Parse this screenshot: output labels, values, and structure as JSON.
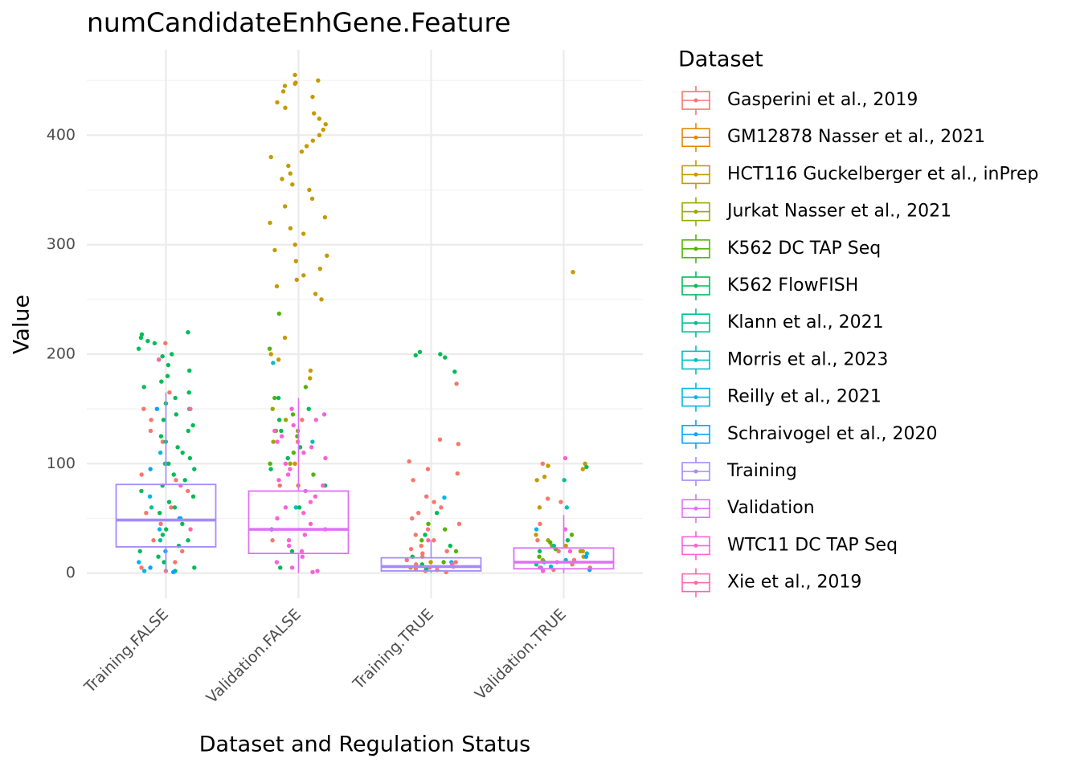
{
  "chart_data": {
    "type": "box_jitter",
    "title": "numCandidateEnhGene.Feature",
    "x_label": "Dataset and Regulation Status",
    "y_label": "Value",
    "legend_title": "Dataset",
    "categories": [
      "Training.FALSE",
      "Validation.FALSE",
      "Training.TRUE",
      "Validation.TRUE"
    ],
    "ylim": [
      -23,
      478
    ],
    "yticks": [
      0,
      100,
      200,
      300,
      400
    ],
    "yminor": [
      50,
      150,
      250,
      350,
      450
    ],
    "grid": true,
    "series": [
      {
        "name": "Gasperini et al., 2019",
        "color": "#F8766D",
        "x": [
          "Training.FALSE",
          "Training.FALSE",
          "Training.FALSE",
          "Training.FALSE",
          "Training.FALSE",
          "Training.FALSE",
          "Training.FALSE",
          "Training.FALSE",
          "Training.FALSE",
          "Training.FALSE",
          "Training.FALSE",
          "Training.FALSE",
          "Training.FALSE",
          "Training.FALSE",
          "Training.FALSE",
          "Training.FALSE",
          "Training.FALSE",
          "Training.FALSE",
          "Validation.FALSE",
          "Validation.FALSE",
          "Validation.FALSE",
          "Validation.FALSE",
          "Training.TRUE",
          "Training.TRUE",
          "Training.TRUE",
          "Training.TRUE",
          "Training.TRUE",
          "Training.TRUE",
          "Training.TRUE",
          "Training.TRUE",
          "Training.TRUE",
          "Training.TRUE",
          "Training.TRUE",
          "Training.TRUE",
          "Training.TRUE",
          "Training.TRUE",
          "Training.TRUE",
          "Training.TRUE",
          "Training.TRUE",
          "Training.TRUE",
          "Training.TRUE",
          "Training.TRUE",
          "Training.TRUE",
          "Training.TRUE",
          "Training.TRUE",
          "Training.TRUE",
          "Training.TRUE",
          "Training.TRUE",
          "Training.TRUE",
          "Training.TRUE",
          "Training.TRUE",
          "Training.TRUE",
          "Validation.TRUE",
          "Validation.TRUE",
          "Validation.TRUE",
          "Validation.TRUE",
          "Validation.TRUE",
          "Validation.TRUE",
          "Validation.TRUE",
          "Validation.TRUE",
          "Validation.TRUE",
          "Validation.TRUE"
        ],
        "values": [
          210,
          165,
          150,
          140,
          120,
          100,
          90,
          75,
          60,
          45,
          30,
          20,
          10,
          5,
          2,
          130,
          85,
          55,
          140,
          120,
          80,
          30,
          173,
          118,
          102,
          95,
          91,
          85,
          70,
          65,
          60,
          55,
          50,
          45,
          40,
          35,
          30,
          25,
          22,
          20,
          18,
          15,
          12,
          10,
          8,
          6,
          5,
          4,
          3,
          2,
          1,
          122,
          100,
          68,
          65,
          45,
          30,
          20,
          12,
          8,
          5,
          3
        ]
      },
      {
        "name": "GM12878 Nasser et al., 2021",
        "color": "#E38900",
        "x": [
          "Validation.FALSE",
          "Validation.FALSE"
        ],
        "values": [
          100,
          80
        ]
      },
      {
        "name": "HCT116 Guckelberger et al., inPrep",
        "color": "#C49A00",
        "x": [
          "Validation.FALSE",
          "Validation.FALSE",
          "Validation.FALSE",
          "Validation.FALSE",
          "Validation.FALSE",
          "Validation.FALSE",
          "Validation.FALSE",
          "Validation.FALSE",
          "Validation.FALSE",
          "Validation.FALSE",
          "Validation.FALSE",
          "Validation.FALSE",
          "Validation.FALSE",
          "Validation.FALSE",
          "Validation.FALSE",
          "Validation.FALSE",
          "Validation.FALSE",
          "Validation.FALSE",
          "Validation.FALSE",
          "Validation.FALSE",
          "Validation.FALSE",
          "Validation.FALSE",
          "Validation.FALSE",
          "Validation.FALSE",
          "Validation.FALSE",
          "Validation.FALSE",
          "Validation.FALSE",
          "Validation.FALSE",
          "Validation.FALSE",
          "Validation.FALSE",
          "Validation.FALSE",
          "Validation.FALSE",
          "Validation.FALSE",
          "Validation.FALSE",
          "Validation.FALSE",
          "Validation.FALSE",
          "Validation.FALSE",
          "Validation.FALSE",
          "Validation.FALSE",
          "Validation.FALSE",
          "Validation.FALSE",
          "Validation.FALSE",
          "Validation.FALSE",
          "Validation.FALSE",
          "Validation.TRUE",
          "Validation.TRUE",
          "Validation.TRUE",
          "Validation.TRUE",
          "Validation.TRUE",
          "Validation.TRUE",
          "Validation.TRUE",
          "Validation.TRUE",
          "Validation.TRUE",
          "Validation.TRUE",
          "Validation.TRUE",
          "Training.TRUE",
          "Training.TRUE"
        ],
        "values": [
          455,
          450,
          448,
          447,
          445,
          440,
          435,
          430,
          425,
          420,
          415,
          410,
          405,
          400,
          395,
          390,
          385,
          380,
          372,
          365,
          360,
          355,
          350,
          342,
          335,
          325,
          320,
          315,
          310,
          300,
          295,
          290,
          285,
          278,
          272,
          268,
          262,
          255,
          250,
          215,
          200,
          195,
          185,
          178,
          275,
          100,
          98,
          95,
          88,
          85,
          60,
          35,
          25,
          20,
          15,
          5,
          10
        ]
      },
      {
        "name": "Jurkat Nasser et al., 2021",
        "color": "#99A800",
        "x": [
          "Validation.FALSE",
          "Validation.FALSE",
          "Validation.FALSE",
          "Validation.FALSE",
          "Validation.FALSE",
          "Validation.TRUE",
          "Validation.TRUE",
          "Validation.TRUE",
          "Validation.TRUE"
        ],
        "values": [
          150,
          140,
          130,
          120,
          100,
          30,
          25,
          20,
          12
        ]
      },
      {
        "name": "K562 DC TAP Seq",
        "color": "#53B400",
        "x": [
          "Validation.FALSE",
          "Validation.FALSE",
          "Validation.FALSE",
          "Validation.FALSE",
          "Validation.FALSE",
          "Validation.FALSE",
          "Validation.FALSE",
          "Validation.FALSE",
          "Validation.FALSE",
          "Validation.FALSE",
          "Training.TRUE",
          "Training.TRUE",
          "Training.TRUE",
          "Training.TRUE",
          "Training.TRUE",
          "Validation.TRUE",
          "Validation.TRUE",
          "Validation.TRUE",
          "Validation.TRUE"
        ],
        "values": [
          237,
          205,
          170,
          160,
          145,
          130,
          125,
          110,
          100,
          90,
          45,
          40,
          30,
          20,
          10,
          35,
          28,
          22,
          15
        ]
      },
      {
        "name": "K562 FlowFISH",
        "color": "#00BC56",
        "x": [
          "Training.FALSE",
          "Training.FALSE",
          "Training.FALSE",
          "Training.FALSE",
          "Training.FALSE",
          "Training.FALSE",
          "Training.FALSE",
          "Training.FALSE",
          "Training.FALSE",
          "Training.FALSE",
          "Training.FALSE",
          "Training.FALSE",
          "Training.FALSE",
          "Training.FALSE",
          "Training.FALSE",
          "Training.FALSE",
          "Training.FALSE",
          "Training.FALSE",
          "Training.FALSE",
          "Training.FALSE",
          "Training.FALSE",
          "Training.FALSE",
          "Training.FALSE",
          "Training.FALSE",
          "Training.FALSE",
          "Training.FALSE",
          "Training.FALSE",
          "Training.FALSE",
          "Training.FALSE",
          "Training.FALSE",
          "Training.FALSE",
          "Training.FALSE",
          "Training.FALSE",
          "Training.FALSE",
          "Training.FALSE",
          "Training.FALSE",
          "Training.FALSE",
          "Training.FALSE",
          "Training.FALSE",
          "Training.FALSE",
          "Training.FALSE",
          "Training.FALSE",
          "Training.FALSE",
          "Training.FALSE",
          "Training.FALSE",
          "Training.FALSE",
          "Training.FALSE",
          "Training.FALSE",
          "Validation.FALSE",
          "Validation.FALSE",
          "Validation.FALSE",
          "Validation.FALSE",
          "Validation.FALSE",
          "Validation.FALSE",
          "Validation.FALSE",
          "Validation.FALSE",
          "Validation.FALSE",
          "Validation.FALSE",
          "Validation.FALSE",
          "Validation.FALSE",
          "Training.TRUE",
          "Training.TRUE",
          "Training.TRUE",
          "Training.TRUE",
          "Training.TRUE",
          "Training.TRUE",
          "Training.TRUE",
          "Training.TRUE",
          "Training.TRUE",
          "Training.TRUE",
          "Training.TRUE",
          "Validation.TRUE",
          "Validation.TRUE",
          "Validation.TRUE",
          "Validation.TRUE"
        ],
        "values": [
          220,
          218,
          215,
          212,
          210,
          205,
          200,
          198,
          195,
          190,
          185,
          180,
          175,
          170,
          165,
          160,
          155,
          150,
          145,
          140,
          135,
          130,
          125,
          120,
          115,
          110,
          105,
          100,
          95,
          90,
          85,
          80,
          75,
          70,
          65,
          60,
          55,
          50,
          45,
          40,
          35,
          30,
          25,
          20,
          15,
          10,
          5,
          2,
          160,
          150,
          140,
          130,
          115,
          105,
          95,
          80,
          60,
          40,
          20,
          5,
          200,
          199,
          197,
          202,
          184,
          55,
          35,
          25,
          15,
          8,
          4,
          97,
          30,
          20,
          10
        ]
      },
      {
        "name": "Klann et al., 2021",
        "color": "#00C094",
        "x": [
          "Training.FALSE",
          "Training.FALSE",
          "Training.FALSE",
          "Validation.TRUE",
          "Validation.TRUE",
          "Validation.TRUE"
        ],
        "values": [
          100,
          60,
          30,
          85,
          25,
          8
        ]
      },
      {
        "name": "Morris et al., 2023",
        "color": "#00BFC4",
        "x": [
          "Validation.FALSE",
          "Validation.FALSE",
          "Validation.FALSE",
          "Validation.TRUE",
          "Validation.TRUE",
          "Validation.TRUE"
        ],
        "values": [
          192,
          120,
          60,
          60,
          18,
          5
        ]
      },
      {
        "name": "Reilly et al., 2021",
        "color": "#00B6EB",
        "x": [
          "Training.FALSE",
          "Training.FALSE",
          "Training.FALSE",
          "Training.FALSE",
          "Training.FALSE",
          "Training.TRUE",
          "Training.TRUE",
          "Validation.TRUE",
          "Validation.TRUE",
          "Validation.TRUE"
        ],
        "values": [
          110,
          70,
          40,
          10,
          2,
          69,
          10,
          40,
          12,
          6
        ]
      },
      {
        "name": "Schraivogel et al., 2020",
        "color": "#06A4FF",
        "x": [
          "Training.FALSE",
          "Training.FALSE",
          "Training.FALSE",
          "Training.FALSE",
          "Training.FALSE",
          "Training.FALSE",
          "Validation.TRUE",
          "Validation.TRUE"
        ],
        "values": [
          150,
          95,
          50,
          20,
          5,
          1,
          15,
          3
        ]
      },
      {
        "name": "Training",
        "color": "#A58AFF",
        "x": [
          "Training.FALSE",
          "Training.TRUE"
        ],
        "min": [
          0,
          0
        ],
        "q1": [
          24,
          2
        ],
        "median": [
          48.5,
          6
        ],
        "q3": [
          81,
          14
        ],
        "max": [
          165,
          30
        ]
      },
      {
        "name": "Validation",
        "color": "#DF70F8",
        "x": [
          "Validation.FALSE",
          "Validation.TRUE"
        ],
        "min": [
          0,
          0
        ],
        "q1": [
          18,
          4
        ],
        "median": [
          40,
          10
        ],
        "q3": [
          75,
          23
        ],
        "max": [
          160,
          53
        ]
      },
      {
        "name": "WTC11 DC TAP Seq",
        "color": "#FB61D7",
        "x": [
          "Validation.FALSE",
          "Validation.FALSE",
          "Validation.FALSE",
          "Validation.FALSE",
          "Validation.FALSE",
          "Validation.FALSE",
          "Validation.FALSE",
          "Validation.FALSE",
          "Validation.FALSE",
          "Validation.FALSE",
          "Validation.FALSE",
          "Validation.FALSE",
          "Validation.FALSE",
          "Validation.FALSE",
          "Validation.FALSE",
          "Validation.FALSE",
          "Validation.FALSE",
          "Validation.FALSE",
          "Validation.FALSE",
          "Validation.FALSE",
          "Validation.FALSE",
          "Validation.FALSE",
          "Validation.FALSE",
          "Validation.FALSE",
          "Validation.FALSE",
          "Validation.FALSE",
          "Validation.FALSE",
          "Validation.FALSE",
          "Validation.FALSE",
          "Validation.FALSE",
          "Validation.FALSE",
          "Validation.FALSE",
          "Validation.TRUE",
          "Validation.TRUE",
          "Validation.TRUE",
          "Validation.TRUE",
          "Validation.TRUE",
          "Validation.TRUE"
        ],
        "values": [
          150,
          145,
          140,
          135,
          130,
          125,
          120,
          115,
          110,
          105,
          100,
          95,
          90,
          85,
          80,
          75,
          70,
          65,
          60,
          55,
          50,
          45,
          40,
          35,
          30,
          25,
          20,
          15,
          10,
          5,
          2,
          1,
          105,
          40,
          20,
          10,
          5,
          2
        ]
      },
      {
        "name": "Xie et al., 2019",
        "color": "#FF66A8",
        "x": [
          "Training.FALSE",
          "Training.FALSE",
          "Training.FALSE",
          "Training.FALSE",
          "Training.TRUE",
          "Training.TRUE"
        ],
        "values": [
          195,
          150,
          80,
          40,
          30,
          8
        ]
      }
    ]
  }
}
